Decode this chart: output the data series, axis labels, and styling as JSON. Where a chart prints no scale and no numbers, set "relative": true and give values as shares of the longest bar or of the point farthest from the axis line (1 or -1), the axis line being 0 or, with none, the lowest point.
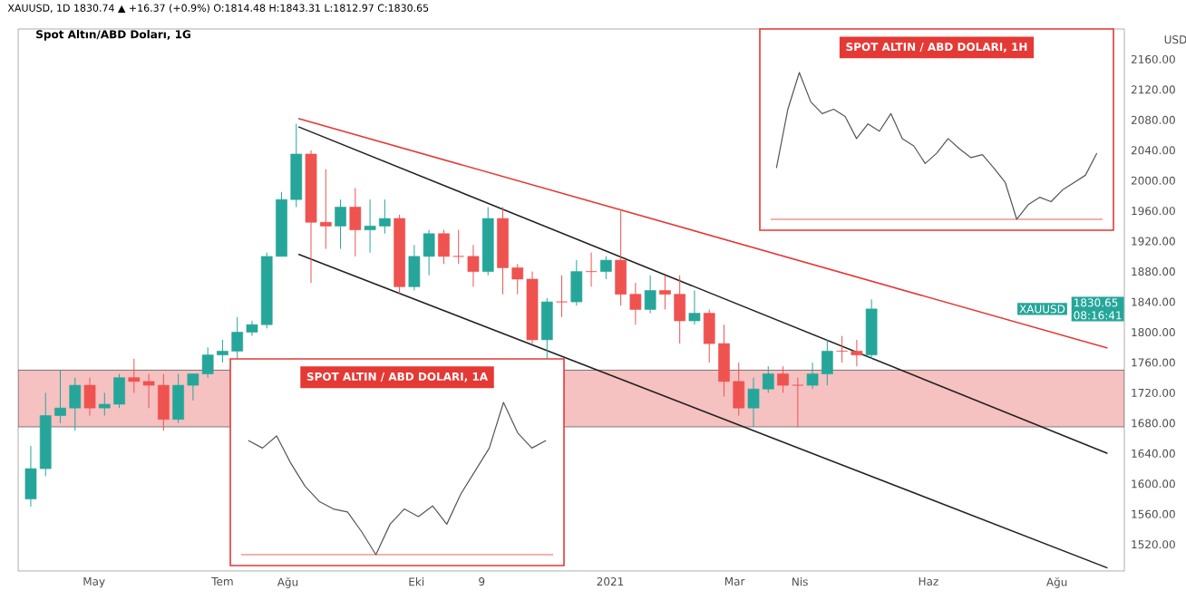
{
  "chart_data": [
    {
      "type": "candlestick",
      "title": "Spot Altın/ABD Doları, 1G",
      "subtitle": "XAUUSD, 1D 1830.74 ▲ +16.37 (+0.9%) O:1814.48 H:1843.31 L:1812.97 C:1830.65",
      "ylabel": "USD",
      "x": [
        "2020-03-30",
        "2020-04-06",
        "2020-04-13",
        "2020-04-20",
        "2020-04-27",
        "2020-05-04",
        "2020-05-11",
        "2020-05-18",
        "2020-05-25",
        "2020-06-01",
        "2020-06-08",
        "2020-06-15",
        "2020-06-22",
        "2020-06-29",
        "2020-07-06",
        "2020-07-13",
        "2020-07-20",
        "2020-07-27",
        "2020-08-03",
        "2020-08-10",
        "2020-08-17",
        "2020-08-24",
        "2020-08-31",
        "2020-09-07",
        "2020-09-14",
        "2020-09-21",
        "2020-09-28",
        "2020-10-05",
        "2020-10-12",
        "2020-10-19",
        "2020-10-26",
        "2020-11-02",
        "2020-11-09",
        "2020-11-16",
        "2020-11-23",
        "2020-11-30",
        "2020-12-07",
        "2020-12-14",
        "2020-12-21",
        "2020-12-28",
        "2021-01-04",
        "2021-01-11",
        "2021-01-18",
        "2021-01-25",
        "2021-02-01",
        "2021-02-08",
        "2021-02-15",
        "2021-02-22",
        "2021-03-01",
        "2021-03-08",
        "2021-03-15",
        "2021-03-22",
        "2021-03-29",
        "2021-04-05",
        "2021-04-12",
        "2021-04-19",
        "2021-04-26",
        "2021-05-03"
      ],
      "ohlc": [
        [
          1580,
          1650,
          1570,
          1620
        ],
        [
          1620,
          1720,
          1610,
          1690
        ],
        [
          1690,
          1750,
          1680,
          1700
        ],
        [
          1700,
          1740,
          1670,
          1730
        ],
        [
          1730,
          1740,
          1690,
          1700
        ],
        [
          1700,
          1720,
          1690,
          1705
        ],
        [
          1705,
          1745,
          1700,
          1740
        ],
        [
          1740,
          1765,
          1720,
          1735
        ],
        [
          1735,
          1745,
          1700,
          1730
        ],
        [
          1730,
          1745,
          1670,
          1685
        ],
        [
          1685,
          1745,
          1680,
          1730
        ],
        [
          1730,
          1745,
          1710,
          1745
        ],
        [
          1745,
          1780,
          1740,
          1770
        ],
        [
          1770,
          1790,
          1760,
          1775
        ],
        [
          1775,
          1820,
          1765,
          1800
        ],
        [
          1800,
          1815,
          1795,
          1810
        ],
        [
          1810,
          1905,
          1805,
          1900
        ],
        [
          1900,
          1985,
          1900,
          1975
        ],
        [
          1975,
          2075,
          1965,
          2035
        ],
        [
          2035,
          2040,
          1865,
          1945
        ],
        [
          1945,
          2015,
          1910,
          1940
        ],
        [
          1940,
          1975,
          1910,
          1965
        ],
        [
          1965,
          1990,
          1900,
          1935
        ],
        [
          1935,
          1975,
          1905,
          1940
        ],
        [
          1940,
          1975,
          1930,
          1950
        ],
        [
          1950,
          1955,
          1850,
          1860
        ],
        [
          1860,
          1915,
          1855,
          1900
        ],
        [
          1900,
          1935,
          1875,
          1930
        ],
        [
          1930,
          1935,
          1890,
          1900
        ],
        [
          1900,
          1935,
          1890,
          1900
        ],
        [
          1900,
          1915,
          1860,
          1880
        ],
        [
          1880,
          1965,
          1875,
          1950
        ],
        [
          1950,
          1965,
          1850,
          1885
        ],
        [
          1885,
          1890,
          1850,
          1870
        ],
        [
          1870,
          1880,
          1785,
          1790
        ],
        [
          1790,
          1845,
          1765,
          1840
        ],
        [
          1840,
          1875,
          1820,
          1840
        ],
        [
          1840,
          1895,
          1835,
          1880
        ],
        [
          1880,
          1905,
          1860,
          1880
        ],
        [
          1880,
          1900,
          1870,
          1895
        ],
        [
          1895,
          1960,
          1835,
          1850
        ],
        [
          1850,
          1865,
          1810,
          1830
        ],
        [
          1830,
          1875,
          1825,
          1855
        ],
        [
          1855,
          1875,
          1830,
          1850
        ],
        [
          1850,
          1875,
          1785,
          1815
        ],
        [
          1815,
          1855,
          1810,
          1825
        ],
        [
          1825,
          1830,
          1760,
          1785
        ],
        [
          1785,
          1810,
          1715,
          1735
        ],
        [
          1735,
          1760,
          1690,
          1700
        ],
        [
          1700,
          1740,
          1675,
          1725
        ],
        [
          1725,
          1755,
          1720,
          1745
        ],
        [
          1745,
          1755,
          1720,
          1730
        ],
        [
          1730,
          1740,
          1675,
          1730
        ],
        [
          1730,
          1760,
          1725,
          1745
        ],
        [
          1745,
          1790,
          1730,
          1775
        ],
        [
          1775,
          1795,
          1760,
          1775
        ],
        [
          1775,
          1790,
          1755,
          1770
        ],
        [
          1770,
          1843.31,
          1765,
          1830.65
        ]
      ],
      "colors": [
        "#26a69a",
        "#26a69a",
        "#26a69a",
        "#26a69a",
        "#ef5350",
        "#26a69a",
        "#26a69a",
        "#ef5350",
        "#ef5350",
        "#ef5350",
        "#26a69a",
        "#26a69a",
        "#26a69a",
        "#26a69a",
        "#26a69a",
        "#26a69a",
        "#26a69a",
        "#26a69a",
        "#26a69a",
        "#ef5350",
        "#ef5350",
        "#26a69a",
        "#ef5350",
        "#26a69a",
        "#26a69a",
        "#ef5350",
        "#26a69a",
        "#26a69a",
        "#ef5350",
        "#ef5350",
        "#ef5350",
        "#26a69a",
        "#ef5350",
        "#ef5350",
        "#ef5350",
        "#26a69a",
        "#ef5350",
        "#26a69a",
        "#ef5350",
        "#26a69a",
        "#ef5350",
        "#ef5350",
        "#26a69a",
        "#ef5350",
        "#ef5350",
        "#26a69a",
        "#ef5350",
        "#ef5350",
        "#ef5350",
        "#26a69a",
        "#26a69a",
        "#ef5350",
        "#ef5350",
        "#26a69a",
        "#26a69a",
        "#ef5350",
        "#ef5350",
        "#26a69a"
      ],
      "series": [
        {
          "type": "line",
          "color": "#222222",
          "x": [
            "2020-08-06",
            "2021-08-25"
          ],
          "values": [
            2071,
            1640
          ]
        },
        {
          "type": "line",
          "color": "#222222",
          "x": [
            "2020-08-06",
            "2021-08-25"
          ],
          "values": [
            1903,
            1489
          ]
        },
        {
          "type": "line",
          "color": "#e53935",
          "x": [
            "2020-08-06",
            "2021-08-25"
          ],
          "values": [
            2082,
            1779
          ]
        }
      ],
      "bands": [
        {
          "axis": "y",
          "from": 1675,
          "to": 1750,
          "color": "#f6c1c1"
        }
      ],
      "annotations": [
        "XAUUSD",
        "1830.65",
        "08:16:41"
      ],
      "xlim": [
        "2020-03-26",
        "2021-09-02"
      ],
      "xticks": [
        {
          "value": "2020-05-01",
          "label": "May"
        },
        {
          "value": "2020-07-01",
          "label": "Tem"
        },
        {
          "value": "2020-08-01",
          "label": "Ağu"
        },
        {
          "value": "2020-10-01",
          "label": "Eki"
        },
        {
          "value": "2020-11-01",
          "label": "9"
        },
        {
          "value": "2021-01-01",
          "label": "2021"
        },
        {
          "value": "2021-03-01",
          "label": "Mar"
        },
        {
          "value": "2021-04-01",
          "label": "Nis"
        },
        {
          "value": "2021-06-01",
          "label": "Haz"
        },
        {
          "value": "2021-08-01",
          "label": "Ağu"
        }
      ],
      "ylim": [
        1485,
        2200
      ],
      "yticks": [
        {
          "value": 1520,
          "label": "1520.00"
        },
        {
          "value": 1560,
          "label": "1560.00"
        },
        {
          "value": 1600,
          "label": "1600.00"
        },
        {
          "value": 1640,
          "label": "1640.00"
        },
        {
          "value": 1680,
          "label": "1680.00"
        },
        {
          "value": 1720,
          "label": "1720.00"
        },
        {
          "value": 1760,
          "label": "1760.00"
        },
        {
          "value": 1800,
          "label": "1800.00"
        },
        {
          "value": 1840,
          "label": "1840.00"
        },
        {
          "value": 1880,
          "label": "1880.00"
        },
        {
          "value": 1920,
          "label": "1920.00"
        },
        {
          "value": 1960,
          "label": "1960.00"
        },
        {
          "value": 2000,
          "label": "2000.00"
        },
        {
          "value": 2040,
          "label": "2040.00"
        },
        {
          "value": 2080,
          "label": "2080.00"
        },
        {
          "value": 2120,
          "label": "2120.00"
        },
        {
          "value": 2160,
          "label": "2160.00"
        }
      ]
    },
    {
      "type": "line",
      "title": "SPOT ALTIN / ABD DOLARI, 1H",
      "relative": true,
      "color": "#555555",
      "categories": [
        null,
        null,
        null,
        null,
        null,
        null,
        null,
        null,
        null,
        null,
        null,
        null,
        null,
        null,
        null,
        null,
        null,
        null,
        null,
        null,
        null,
        null,
        null,
        null,
        null,
        null,
        null,
        null,
        null
      ],
      "values": [
        0.35,
        0.75,
        1,
        0.8,
        0.72,
        0.75,
        0.7,
        0.55,
        0.65,
        0.6,
        0.72,
        0.55,
        0.5,
        0.38,
        0.45,
        0.55,
        0.48,
        0.42,
        0.44,
        0.35,
        0.25,
        0,
        0.1,
        0.15,
        0.12,
        0.2,
        0.25,
        0.3,
        0.45
      ]
    },
    {
      "type": "line",
      "title": "SPOT ALTIN / ABD DOLARI, 1A",
      "relative": true,
      "color": "#555555",
      "categories": [
        null,
        null,
        null,
        null,
        null,
        null,
        null,
        null,
        null,
        null,
        null,
        null,
        null,
        null,
        null,
        null,
        null,
        null,
        null,
        null,
        null,
        null
      ],
      "values": [
        0.75,
        0.7,
        0.78,
        0.6,
        0.45,
        0.35,
        0.3,
        0.28,
        0.15,
        0,
        0.2,
        0.3,
        0.25,
        0.32,
        0.2,
        0.4,
        0.55,
        0.7,
        1,
        0.8,
        0.7,
        0.75
      ]
    }
  ]
}
